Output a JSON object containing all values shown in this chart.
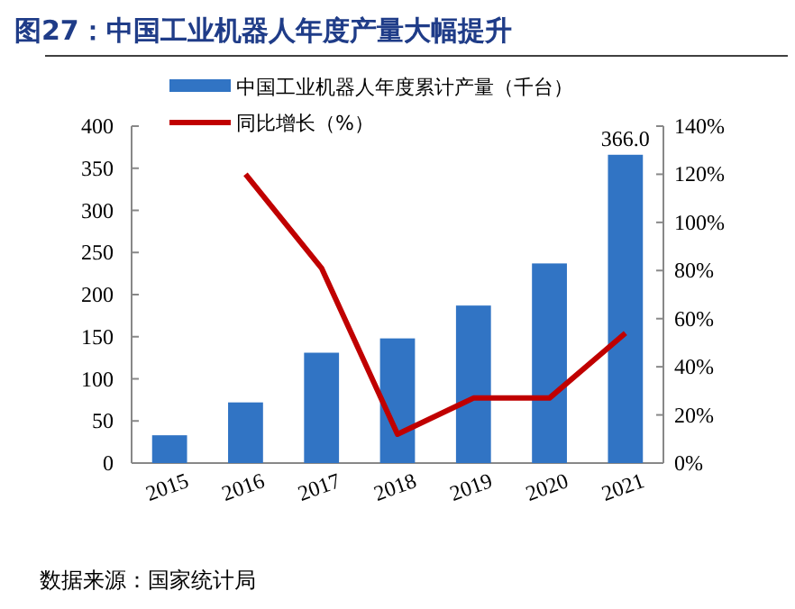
{
  "chart_data": {
    "type": "bar",
    "title": "图27：中国工业机器人年度产量大幅提升",
    "categories": [
      "2015",
      "2016",
      "2017",
      "2018",
      "2019",
      "2020",
      "2021"
    ],
    "series": [
      {
        "name": "中国工业机器人年度累计产量（千台）",
        "color": "#3174c4",
        "values": [
          33,
          72,
          131,
          148,
          187,
          237,
          366
        ],
        "value_labels": [
          null,
          null,
          null,
          null,
          null,
          null,
          "366.0"
        ]
      },
      {
        "name": "同比增长（%）",
        "type": "line",
        "axis": "y2",
        "color": "#c00000",
        "values": [
          null,
          120,
          81,
          12,
          27,
          27,
          54
        ]
      }
    ],
    "ylim": [
      0,
      400
    ],
    "yticks": [
      0,
      50,
      100,
      150,
      200,
      250,
      300,
      350,
      400
    ],
    "y2lim": [
      0,
      140
    ],
    "y2ticks": [
      {
        "value": 0,
        "label": "0%"
      },
      {
        "value": 20,
        "label": "20%"
      },
      {
        "value": 40,
        "label": "40%"
      },
      {
        "value": 60,
        "label": "60%"
      },
      {
        "value": 80,
        "label": "80%"
      },
      {
        "value": 100,
        "label": "100%"
      },
      {
        "value": 120,
        "label": "120%"
      },
      {
        "value": 140,
        "label": "140%"
      }
    ],
    "legend": "top",
    "marker": "none",
    "line_style": "solid",
    "grid": false,
    "annotations": [
      "数据来源：国家统计局"
    ]
  }
}
